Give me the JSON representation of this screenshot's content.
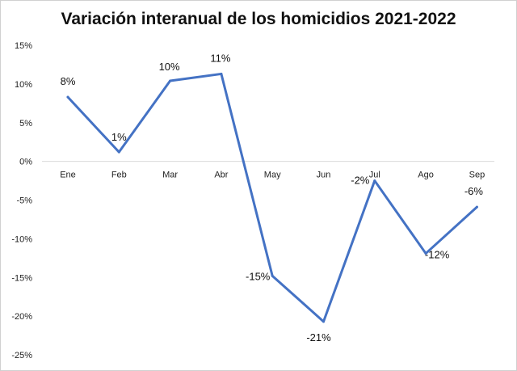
{
  "chart_data": {
    "type": "line",
    "title": "Variación interanual de los homicidios 2021-2022",
    "xlabel": "",
    "ylabel": "",
    "categories": [
      "Ene",
      "Feb",
      "Mar",
      "Abr",
      "May",
      "Jun",
      "Jul",
      "Ago",
      "Sep"
    ],
    "series": [
      {
        "values": [
          8.3,
          1.2,
          10.4,
          11.3,
          -14.8,
          -20.7,
          -2.5,
          -11.9,
          -5.9
        ],
        "labels": [
          "8%",
          "1%",
          "10%",
          "11%",
          "-15%",
          "-21%",
          "-2%",
          "-12%",
          "-6%"
        ],
        "color": "#4472C4"
      }
    ],
    "ylim": [
      -25,
      15
    ],
    "yticks": [
      15,
      10,
      5,
      0,
      -5,
      -10,
      -15,
      -20,
      -25
    ],
    "ytick_labels": [
      "15%",
      "10%",
      "5%",
      "0%",
      "-5%",
      "-10%",
      "-15%",
      "-20%",
      "-25%"
    ],
    "grid": false
  }
}
